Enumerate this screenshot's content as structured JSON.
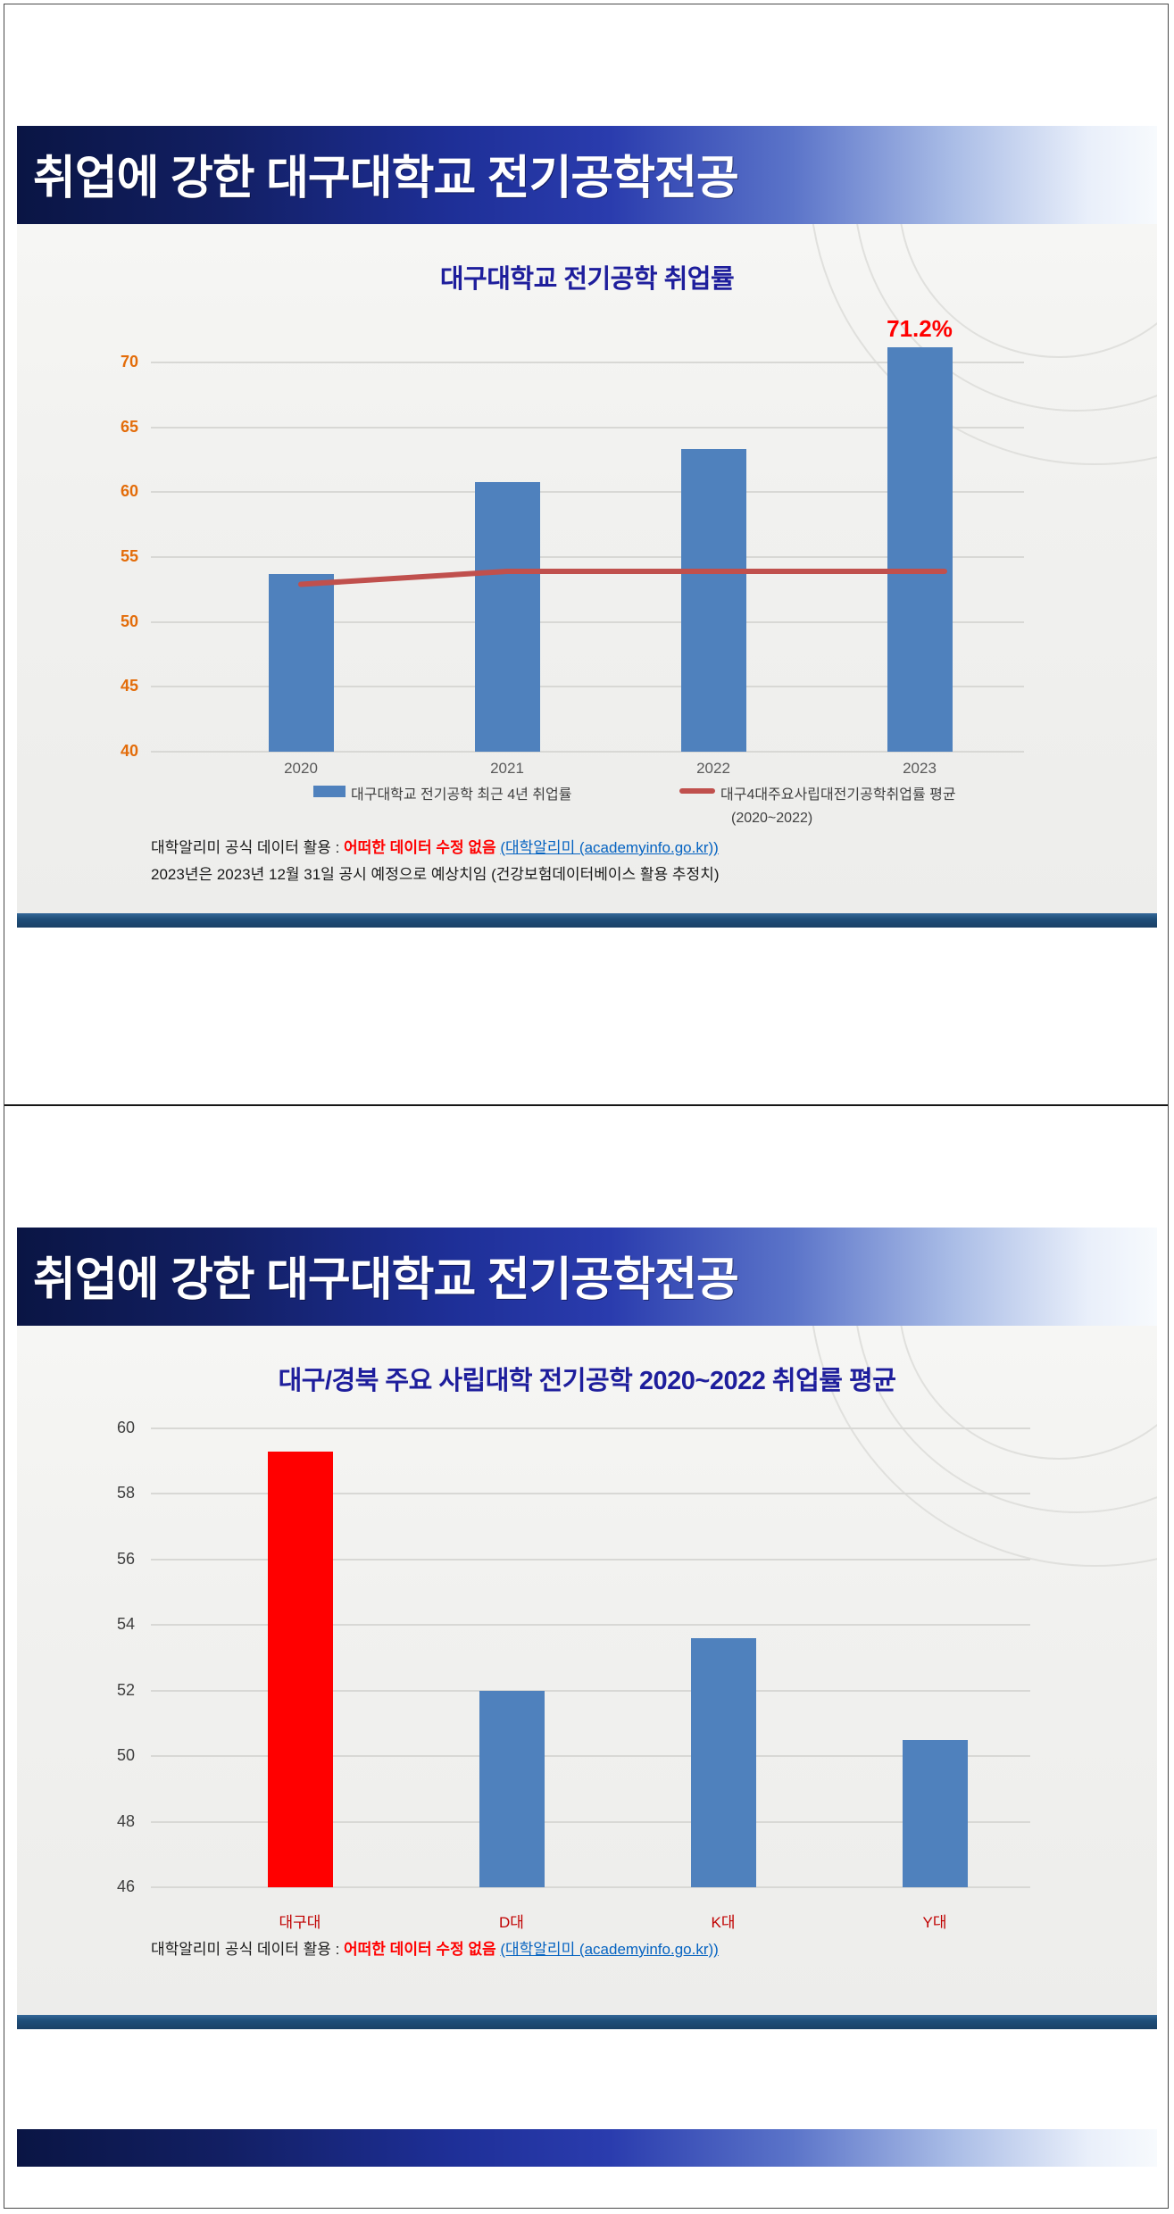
{
  "slide1": {
    "banner_title": "취업에 강한 대구대학교 전기공학전공",
    "chart_title": "대구대학교 전기공학 취업률",
    "chart_data": {
      "type": "bar",
      "categories": [
        "2020",
        "2021",
        "2022",
        "2023"
      ],
      "series": [
        {
          "name": "대구대학교 전기공학 최근 4년 취업률",
          "type": "bar",
          "values": [
            53.7,
            60.8,
            63.3,
            71.2
          ],
          "color": "#4F81BD"
        },
        {
          "name": "대구4대주요사립대전기공학취업률 평균 (2020~2022)",
          "type": "line",
          "values": [
            52.9,
            53.9,
            53.9,
            53.9
          ],
          "color": "#C0504D"
        }
      ],
      "annotation": {
        "text": "71.2%",
        "category": "2023",
        "color": "#FF0000"
      },
      "title": "대구대학교 전기공학 취업률",
      "xlabel": "",
      "ylabel": "",
      "ylim": [
        40,
        70
      ],
      "ytick_step": 5,
      "tick_color": "#E36C09",
      "category_label_color": "#595959",
      "grid": true,
      "legend_position": "bottom"
    },
    "legend": {
      "item1": "대구대학교 전기공학 최근 4년 취업률",
      "item2_line1": "대구4대주요사립대전기공학취업률 평균",
      "item2_line2": "(2020~2022)"
    },
    "footer": {
      "line1_prefix": "대학알리미 공식 데이터 활용 : ",
      "line1_emphasis": "어떠한 데이터 수정 없음",
      "line1_space": " ",
      "line1_link": "(대학알리미 (academyinfo.go.kr))",
      "line2": "2023년은 2023년 12월 31일 공시 예정으로 예상치임 (건강보험데이터베이스 활용 추정치)"
    }
  },
  "slide2": {
    "banner_title": "취업에 강한 대구대학교 전기공학전공",
    "chart_title": "대구/경북 주요 사립대학  전기공학 2020~2022 취업률 평균",
    "chart_data": {
      "type": "bar",
      "categories": [
        "대구대",
        "D대",
        "K대",
        "Y대"
      ],
      "values": [
        59.3,
        52.0,
        53.6,
        50.5
      ],
      "bar_colors": [
        "#FF0000",
        "#4F81BD",
        "#4F81BD",
        "#4F81BD"
      ],
      "title": "대구/경북 주요 사립대학  전기공학 2020~2022 취업률 평균",
      "xlabel": "",
      "ylabel": "",
      "ylim": [
        46,
        60
      ],
      "ytick_step": 2,
      "tick_color": "#3F3F3F",
      "category_label_color": "#C00000",
      "grid": true,
      "legend_position": "none"
    },
    "footer": {
      "line1_prefix": "대학알리미 공식 데이터 활용 : ",
      "line1_emphasis": "어떠한 데이터 수정 없음",
      "line1_space": " ",
      "line1_link": "(대학알리미 (academyinfo.go.kr))"
    }
  },
  "colors": {
    "bar_blue": "#4F81BD",
    "bar_red": "#FF0000",
    "trend_red": "#C0504D",
    "title_blue": "#1e1e9c",
    "axis_orange": "#E36C09",
    "banner_navy": "#121f63",
    "divider_blue": "#1f4e79",
    "link_blue": "#0563C1"
  }
}
